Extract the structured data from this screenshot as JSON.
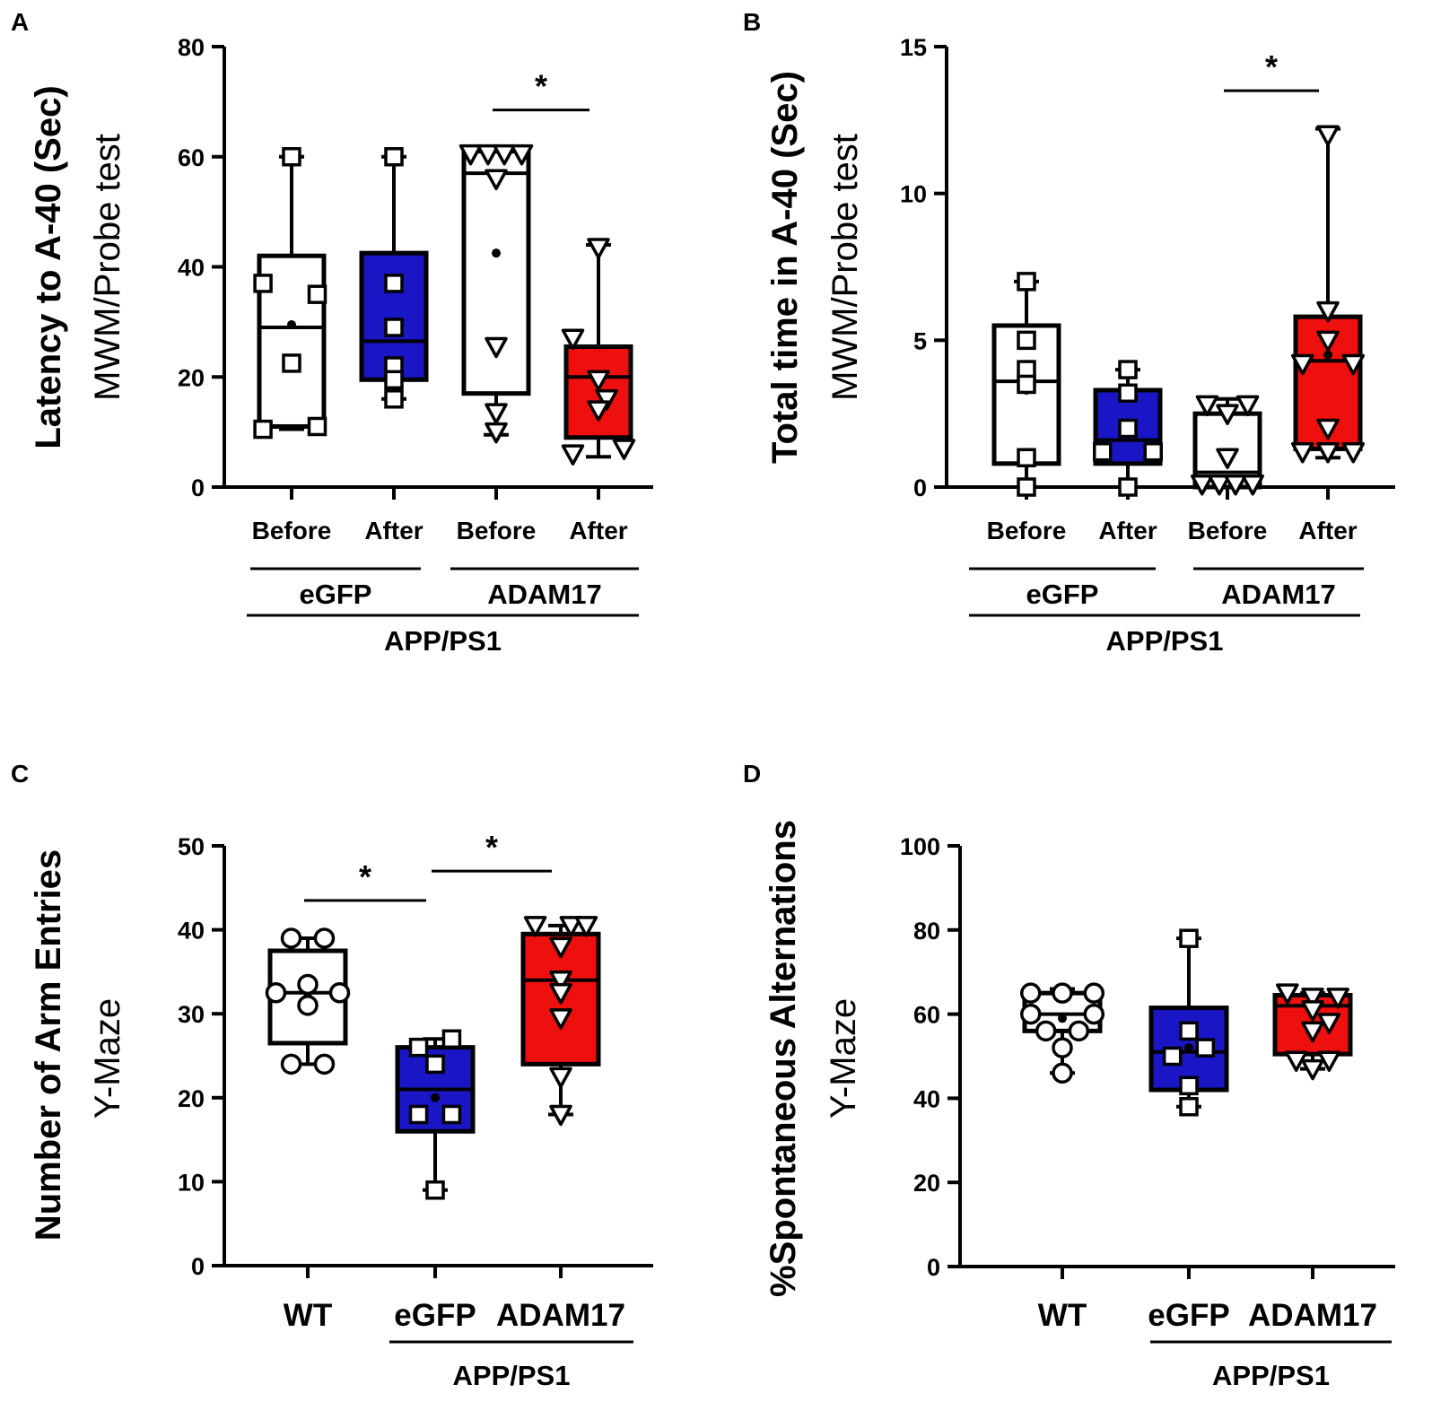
{
  "colors": {
    "white": "#ffffff",
    "blue": "#1a16c6",
    "red": "#ee0f0f",
    "ink": "#000000"
  },
  "chart_data": [
    {
      "panel": "A",
      "type": "box",
      "ylabel": "Latency to A-40 (Sec)",
      "ylabel2": "MWM/Probe test",
      "ylim": [
        0,
        80
      ],
      "yticks": [
        0,
        20,
        40,
        60,
        80
      ],
      "categories": [
        "Before",
        "After",
        "Before",
        "After"
      ],
      "groups": [
        {
          "label": "eGFP",
          "span": [
            0,
            1
          ]
        },
        {
          "label": "ADAM17",
          "span": [
            2,
            3
          ]
        }
      ],
      "supergroup": {
        "label": "APP/PS1",
        "span": [
          0,
          3
        ]
      },
      "boxes": [
        {
          "name": "eGFP Before",
          "color": "white",
          "marker": "square",
          "min": 10.5,
          "q1": 11,
          "median": 29,
          "q3": 42,
          "max": 60,
          "mean": 29.5,
          "points": [
            [
              0,
              60
            ],
            [
              -0.28,
              37
            ],
            [
              0.25,
              35
            ],
            [
              0,
              22.5
            ],
            [
              -0.28,
              10.5
            ],
            [
              0.25,
              11
            ]
          ]
        },
        {
          "name": "eGFP After",
          "color": "blue",
          "marker": "square",
          "min": 16,
          "q1": 19.5,
          "median": 26.5,
          "q3": 42.5,
          "max": 60,
          "mean": 30,
          "points": [
            [
              0,
              60
            ],
            [
              0,
              37
            ],
            [
              0,
              29
            ],
            [
              0,
              22
            ],
            [
              0,
              19.5
            ],
            [
              0,
              16
            ]
          ]
        },
        {
          "name": "ADAM17 Before",
          "color": "white",
          "marker": "triangle",
          "min": 9.5,
          "q1": 17,
          "median": 57,
          "q3": 61,
          "max": 61,
          "mean": 42.5,
          "points": [
            [
              -0.25,
              60.5
            ],
            [
              -0.08,
              60.5
            ],
            [
              0.08,
              60.5
            ],
            [
              0.25,
              60.5
            ],
            [
              0,
              56
            ],
            [
              0,
              25.5
            ],
            [
              0,
              13.5
            ],
            [
              0,
              10
            ]
          ]
        },
        {
          "name": "ADAM17 After",
          "color": "red",
          "marker": "triangle",
          "min": 5.5,
          "q1": 9,
          "median": 20,
          "q3": 25.5,
          "max": 44,
          "mean": 19.5,
          "points": [
            [
              0,
              43.5
            ],
            [
              -0.25,
              27
            ],
            [
              0,
              19.5
            ],
            [
              0.08,
              16
            ],
            [
              0,
              14
            ],
            [
              -0.25,
              6
            ],
            [
              0.25,
              7
            ]
          ]
        }
      ],
      "significance": [
        {
          "from": 2,
          "to": 3,
          "y": 68.5,
          "label": "*"
        }
      ]
    },
    {
      "panel": "B",
      "type": "box",
      "ylabel": "Total time in A-40 (Sec)",
      "ylabel2": "MWM/Probe test",
      "ylim": [
        0,
        15
      ],
      "yticks": [
        0,
        5,
        10,
        15
      ],
      "categories": [
        "Before",
        "After",
        "Before",
        "After"
      ],
      "groups": [
        {
          "label": "eGFP",
          "span": [
            0,
            1
          ]
        },
        {
          "label": "ADAM17",
          "span": [
            2,
            3
          ]
        }
      ],
      "supergroup": {
        "label": "APP/PS1",
        "span": [
          0,
          3
        ]
      },
      "boxes": [
        {
          "name": "eGFP Before",
          "color": "white",
          "marker": "square",
          "min": 0,
          "q1": 0.8,
          "median": 3.6,
          "q3": 5.5,
          "max": 7,
          "mean": 3.3,
          "points": [
            [
              0,
              7
            ],
            [
              0,
              5
            ],
            [
              0,
              4
            ],
            [
              0,
              3.5
            ],
            [
              0,
              1
            ],
            [
              0,
              0
            ]
          ]
        },
        {
          "name": "eGFP After",
          "color": "blue",
          "marker": "square",
          "min": 0,
          "q1": 0.8,
          "median": 1.6,
          "q3": 3.3,
          "max": 4,
          "mean": 2,
          "points": [
            [
              0,
              4
            ],
            [
              0,
              3.2
            ],
            [
              0,
              2
            ],
            [
              -0.25,
              1.2
            ],
            [
              0.25,
              1.2
            ],
            [
              0,
              0
            ]
          ]
        },
        {
          "name": "ADAM17 Before",
          "color": "white",
          "marker": "triangle",
          "min": 0,
          "q1": 0,
          "median": 0.5,
          "q3": 2.5,
          "max": 3,
          "mean": 2.5,
          "points": [
            [
              -0.2,
              2.8
            ],
            [
              0.2,
              2.8
            ],
            [
              0,
              2.5
            ],
            [
              0,
              1
            ],
            [
              -0.25,
              0.1
            ],
            [
              -0.08,
              0.1
            ],
            [
              0.08,
              0.1
            ],
            [
              0.25,
              0.1
            ]
          ]
        },
        {
          "name": "ADAM17 After",
          "color": "red",
          "marker": "triangle",
          "min": 1,
          "q1": 1.3,
          "median": 4.3,
          "q3": 5.8,
          "max": 12.2,
          "mean": 4.5,
          "points": [
            [
              0,
              12
            ],
            [
              0,
              6
            ],
            [
              0,
              5
            ],
            [
              -0.25,
              4.2
            ],
            [
              0.25,
              4.2
            ],
            [
              0,
              2
            ],
            [
              -0.25,
              1.2
            ],
            [
              0,
              1.2
            ],
            [
              0.25,
              1.2
            ]
          ]
        }
      ],
      "significance": [
        {
          "from": 2,
          "to": 3,
          "y": 13.5,
          "label": "*"
        }
      ]
    },
    {
      "panel": "C",
      "type": "box",
      "ylabel": "Number of Arm Entries",
      "ylabel2": "Y-Maze",
      "ylim": [
        0,
        50
      ],
      "yticks": [
        0,
        10,
        20,
        30,
        40,
        50
      ],
      "categories": [
        "WT",
        "eGFP",
        "ADAM17"
      ],
      "groups": [],
      "supergroup": {
        "label": "APP/PS1",
        "span": [
          1,
          2
        ]
      },
      "boxes": [
        {
          "name": "WT",
          "color": "white",
          "marker": "circle",
          "min": 24,
          "q1": 26.5,
          "median": 32.5,
          "q3": 37.5,
          "max": 39,
          "mean": 32,
          "points": [
            [
              -0.13,
              39
            ],
            [
              0.13,
              39
            ],
            [
              -0.25,
              32.5
            ],
            [
              0.25,
              32.5
            ],
            [
              0,
              33.5
            ],
            [
              0,
              31
            ],
            [
              -0.13,
              24
            ],
            [
              0.13,
              24
            ]
          ]
        },
        {
          "name": "eGFP",
          "color": "blue",
          "marker": "square",
          "min": 9,
          "q1": 16,
          "median": 21,
          "q3": 26,
          "max": 27,
          "mean": 20,
          "points": [
            [
              0.13,
              27
            ],
            [
              -0.13,
              26
            ],
            [
              0,
              24
            ],
            [
              -0.13,
              18
            ],
            [
              0.13,
              18
            ],
            [
              0,
              9
            ]
          ]
        },
        {
          "name": "ADAM17",
          "color": "red",
          "marker": "triangle",
          "min": 18,
          "q1": 24,
          "median": 34,
          "q3": 39.5,
          "max": 40.5,
          "mean": 32,
          "points": [
            [
              -0.2,
              40.5
            ],
            [
              0.08,
              40.5
            ],
            [
              0.2,
              40.5
            ],
            [
              0,
              38
            ],
            [
              0,
              34
            ],
            [
              0,
              32.5
            ],
            [
              0,
              29.5
            ],
            [
              0,
              22.5
            ],
            [
              0,
              18
            ]
          ]
        }
      ],
      "significance": [
        {
          "from": 0,
          "to": 1,
          "y": 43.5,
          "label": "*"
        },
        {
          "from": 1,
          "to": 2,
          "y": 47,
          "label": "*"
        }
      ]
    },
    {
      "panel": "D",
      "type": "box",
      "ylabel": "%Spontaneous Alternations",
      "ylabel2": "Y-Maze",
      "ylim": [
        0,
        100
      ],
      "yticks": [
        0,
        20,
        40,
        60,
        80,
        100
      ],
      "categories": [
        "WT",
        "eGFP",
        "ADAM17"
      ],
      "groups": [],
      "supergroup": {
        "label": "APP/PS1",
        "span": [
          1,
          2
        ]
      },
      "boxes": [
        {
          "name": "WT",
          "color": "white",
          "marker": "circle",
          "min": 46,
          "q1": 56,
          "median": 60,
          "q3": 65,
          "max": 66,
          "mean": 59,
          "points": [
            [
              -0.25,
              65
            ],
            [
              0,
              65
            ],
            [
              0.25,
              65
            ],
            [
              -0.25,
              60
            ],
            [
              0.25,
              60
            ],
            [
              -0.13,
              56
            ],
            [
              0.13,
              56
            ],
            [
              0,
              52
            ],
            [
              0,
              46
            ]
          ]
        },
        {
          "name": "eGFP",
          "color": "blue",
          "marker": "square",
          "min": 38,
          "q1": 42,
          "median": 51,
          "q3": 61.5,
          "max": 78,
          "mean": 52,
          "points": [
            [
              0,
              78
            ],
            [
              0,
              56
            ],
            [
              -0.13,
              50
            ],
            [
              0.13,
              52
            ],
            [
              0,
              43
            ],
            [
              0,
              38
            ]
          ]
        },
        {
          "name": "ADAM17",
          "color": "red",
          "marker": "triangle",
          "min": 47,
          "q1": 50.5,
          "median": 62,
          "q3": 64.5,
          "max": 65,
          "mean": 57,
          "points": [
            [
              -0.2,
              65
            ],
            [
              0,
              64
            ],
            [
              0.2,
              64
            ],
            [
              0,
              61
            ],
            [
              0.13,
              58
            ],
            [
              0,
              56
            ],
            [
              -0.13,
              49
            ],
            [
              0.13,
              49
            ],
            [
              0,
              47
            ]
          ]
        }
      ],
      "significance": []
    }
  ]
}
